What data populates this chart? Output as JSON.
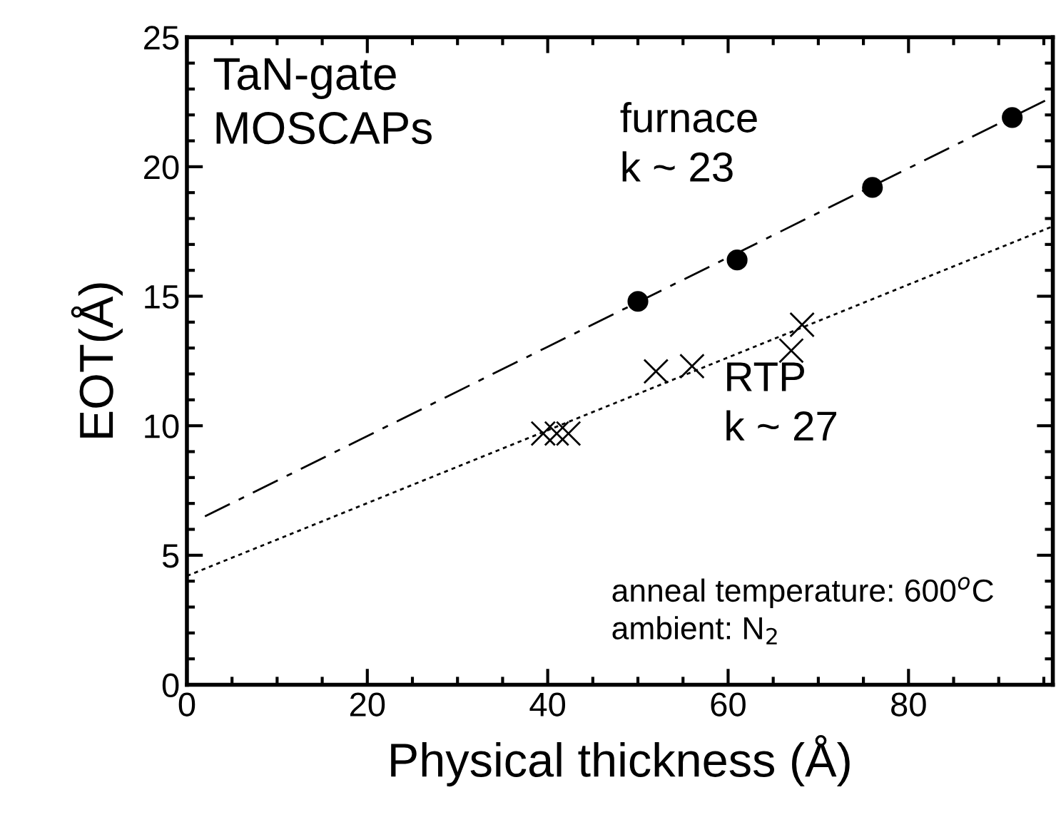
{
  "chart_data": {
    "type": "scatter",
    "xlabel": "Physical thickness (Å)",
    "ylabel": "EOT(Å)",
    "xlim": [
      0,
      96
    ],
    "ylim": [
      0,
      25
    ],
    "xticks": [
      0,
      20,
      40,
      60,
      80
    ],
    "yticks": [
      0,
      5,
      10,
      15,
      20,
      25
    ],
    "grid": false,
    "legend": false,
    "series": [
      {
        "marker": "circle",
        "color": "#000000",
        "x": [
          50,
          61,
          76,
          91.5
        ],
        "values": [
          14.8,
          16.4,
          19.2,
          21.9
        ]
      },
      {
        "marker": "cross",
        "color": "#000000",
        "x": [
          39.5,
          41,
          42.3,
          52,
          56,
          67,
          68.2
        ],
        "values": [
          9.7,
          9.7,
          9.7,
          12.1,
          12.3,
          12.9,
          13.9
        ]
      },
      {
        "type": "line",
        "line_style": "dashed",
        "marker": "none",
        "color": "#000000",
        "x": [
          2,
          96
        ],
        "values": [
          6.5,
          22.7
        ]
      },
      {
        "type": "line",
        "line_style": "dotted",
        "marker": "none",
        "color": "#000000",
        "x": [
          0,
          96
        ],
        "values": [
          4.2,
          17.7
        ]
      }
    ],
    "annotations": [
      {
        "text": "TaN-gate\nMOSCAPs"
      },
      {
        "text": "furnace\nk ~ 23"
      },
      {
        "text": "RTP\nk ~ 27"
      },
      {
        "text": "anneal temperature: 600$^{o}$C\nambient: N$_{2}$"
      }
    ]
  }
}
